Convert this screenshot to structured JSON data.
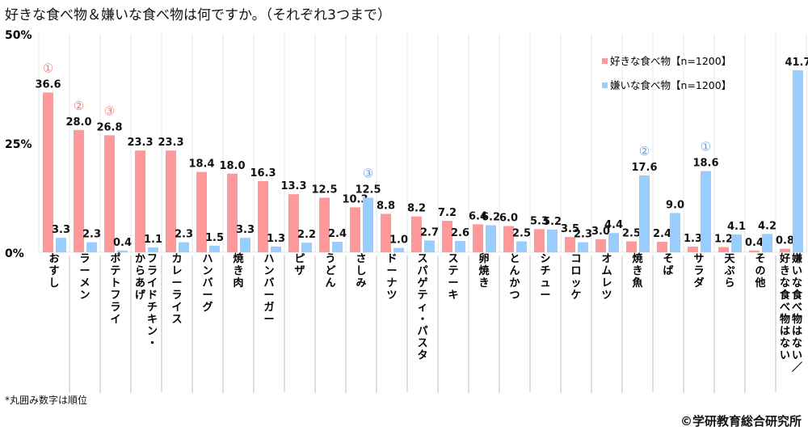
{
  "title": "好きな食べ物＆嫌いな食べ物は何ですか。（それぞれ3つまで）",
  "note": "*丸囲み数字は順位",
  "credit": "©学研教育総合研究所",
  "colors": {
    "like": "#ff9999",
    "dislike": "#99ccff",
    "grid": "#e6e6e6",
    "axis": "#bfbfbf"
  },
  "chart_data": {
    "type": "bar",
    "title": "好きな食べ物＆嫌いな食べ物は何ですか。（それぞれ3つまで）",
    "xlabel": "",
    "ylabel": "",
    "ylim": [
      0,
      50
    ],
    "yticks": [
      "0%",
      "25%",
      "50%"
    ],
    "ytick_values": [
      0,
      25,
      50
    ],
    "grid": true,
    "legend_position": "top-right",
    "categories": [
      "おすし",
      "ラーメン",
      "ポテトフライ",
      "フライドチキン・からあげ",
      "カレーライス",
      "ハンバーグ",
      "焼き肉",
      "ハンバーガー",
      "ピザ",
      "うどん",
      "さしみ",
      "ドーナツ",
      "スパゲティ・パスタ",
      "ステーキ",
      "卵焼き",
      "とんかつ",
      "シチュー",
      "コロッケ",
      "オムレツ",
      "焼き魚",
      "そば",
      "サラダ",
      "天ぷら",
      "その他",
      "嫌いな食べ物はない／好きな食べ物はない"
    ],
    "category_lines": [
      [
        "おすし"
      ],
      [
        "ラーメン"
      ],
      [
        "ポテトフライ"
      ],
      [
        "からあげ",
        "フライドチキン・"
      ],
      [
        "カレーライス"
      ],
      [
        "ハンバーグ"
      ],
      [
        "焼き肉"
      ],
      [
        "ハンバーガー"
      ],
      [
        "ピザ"
      ],
      [
        "うどん"
      ],
      [
        "さしみ"
      ],
      [
        "ドーナツ"
      ],
      [
        "スパゲティ・パスタ"
      ],
      [
        "ステーキ"
      ],
      [
        "卵焼き"
      ],
      [
        "とんかつ"
      ],
      [
        "シチュー"
      ],
      [
        "コロッケ"
      ],
      [
        "オムレツ"
      ],
      [
        "焼き魚"
      ],
      [
        "そば"
      ],
      [
        "サラダ"
      ],
      [
        "天ぷら"
      ],
      [
        "その他"
      ],
      [
        "好きな食べ物はない",
        "嫌いな食べ物はない／"
      ]
    ],
    "series": [
      {
        "name": "好きな食べ物【n=1200】",
        "values": [
          36.6,
          28.0,
          26.8,
          23.3,
          23.3,
          18.4,
          18.0,
          16.3,
          13.3,
          12.5,
          10.3,
          8.8,
          8.2,
          7.2,
          6.4,
          6.0,
          5.3,
          3.5,
          3.0,
          2.5,
          2.4,
          1.3,
          1.2,
          0.4,
          0.8
        ],
        "labels": [
          "36.6",
          "28.0",
          "26.8",
          "23.3",
          "23.3",
          "18.4",
          "18.0",
          "16.3",
          "13.3",
          "12.5",
          "10.3",
          "8.8",
          "8.2",
          "7.2",
          "6.4",
          "6.0",
          "5.3",
          "3.5",
          "3.0",
          "2.5",
          "2.4",
          "1.3",
          "1.2",
          "0.4",
          "0.8"
        ],
        "ranks": {
          "0": "①",
          "1": "②",
          "2": "③"
        }
      },
      {
        "name": "嫌いな食べ物【n=1200】",
        "values": [
          3.3,
          2.3,
          0.4,
          1.1,
          2.3,
          1.5,
          3.3,
          1.3,
          2.2,
          2.4,
          12.5,
          1.0,
          2.7,
          2.6,
          6.2,
          2.5,
          5.2,
          2.3,
          4.4,
          17.6,
          9.0,
          18.6,
          4.1,
          4.2,
          41.7
        ],
        "labels": [
          "3.3",
          "2.3",
          "0.4",
          "1.1",
          "2.3",
          "1.5",
          "3.3",
          "1.3",
          "2.2",
          "2.4",
          "12.5",
          "1.0",
          "2.7",
          "2.6",
          "6.2",
          "2.5",
          "5.2",
          "2.3",
          "4.4",
          "17.6",
          "9.0",
          "18.6",
          "4.1",
          "4.2",
          "41.7"
        ],
        "ranks": {
          "21": "①",
          "19": "②",
          "10": "③"
        }
      }
    ]
  }
}
